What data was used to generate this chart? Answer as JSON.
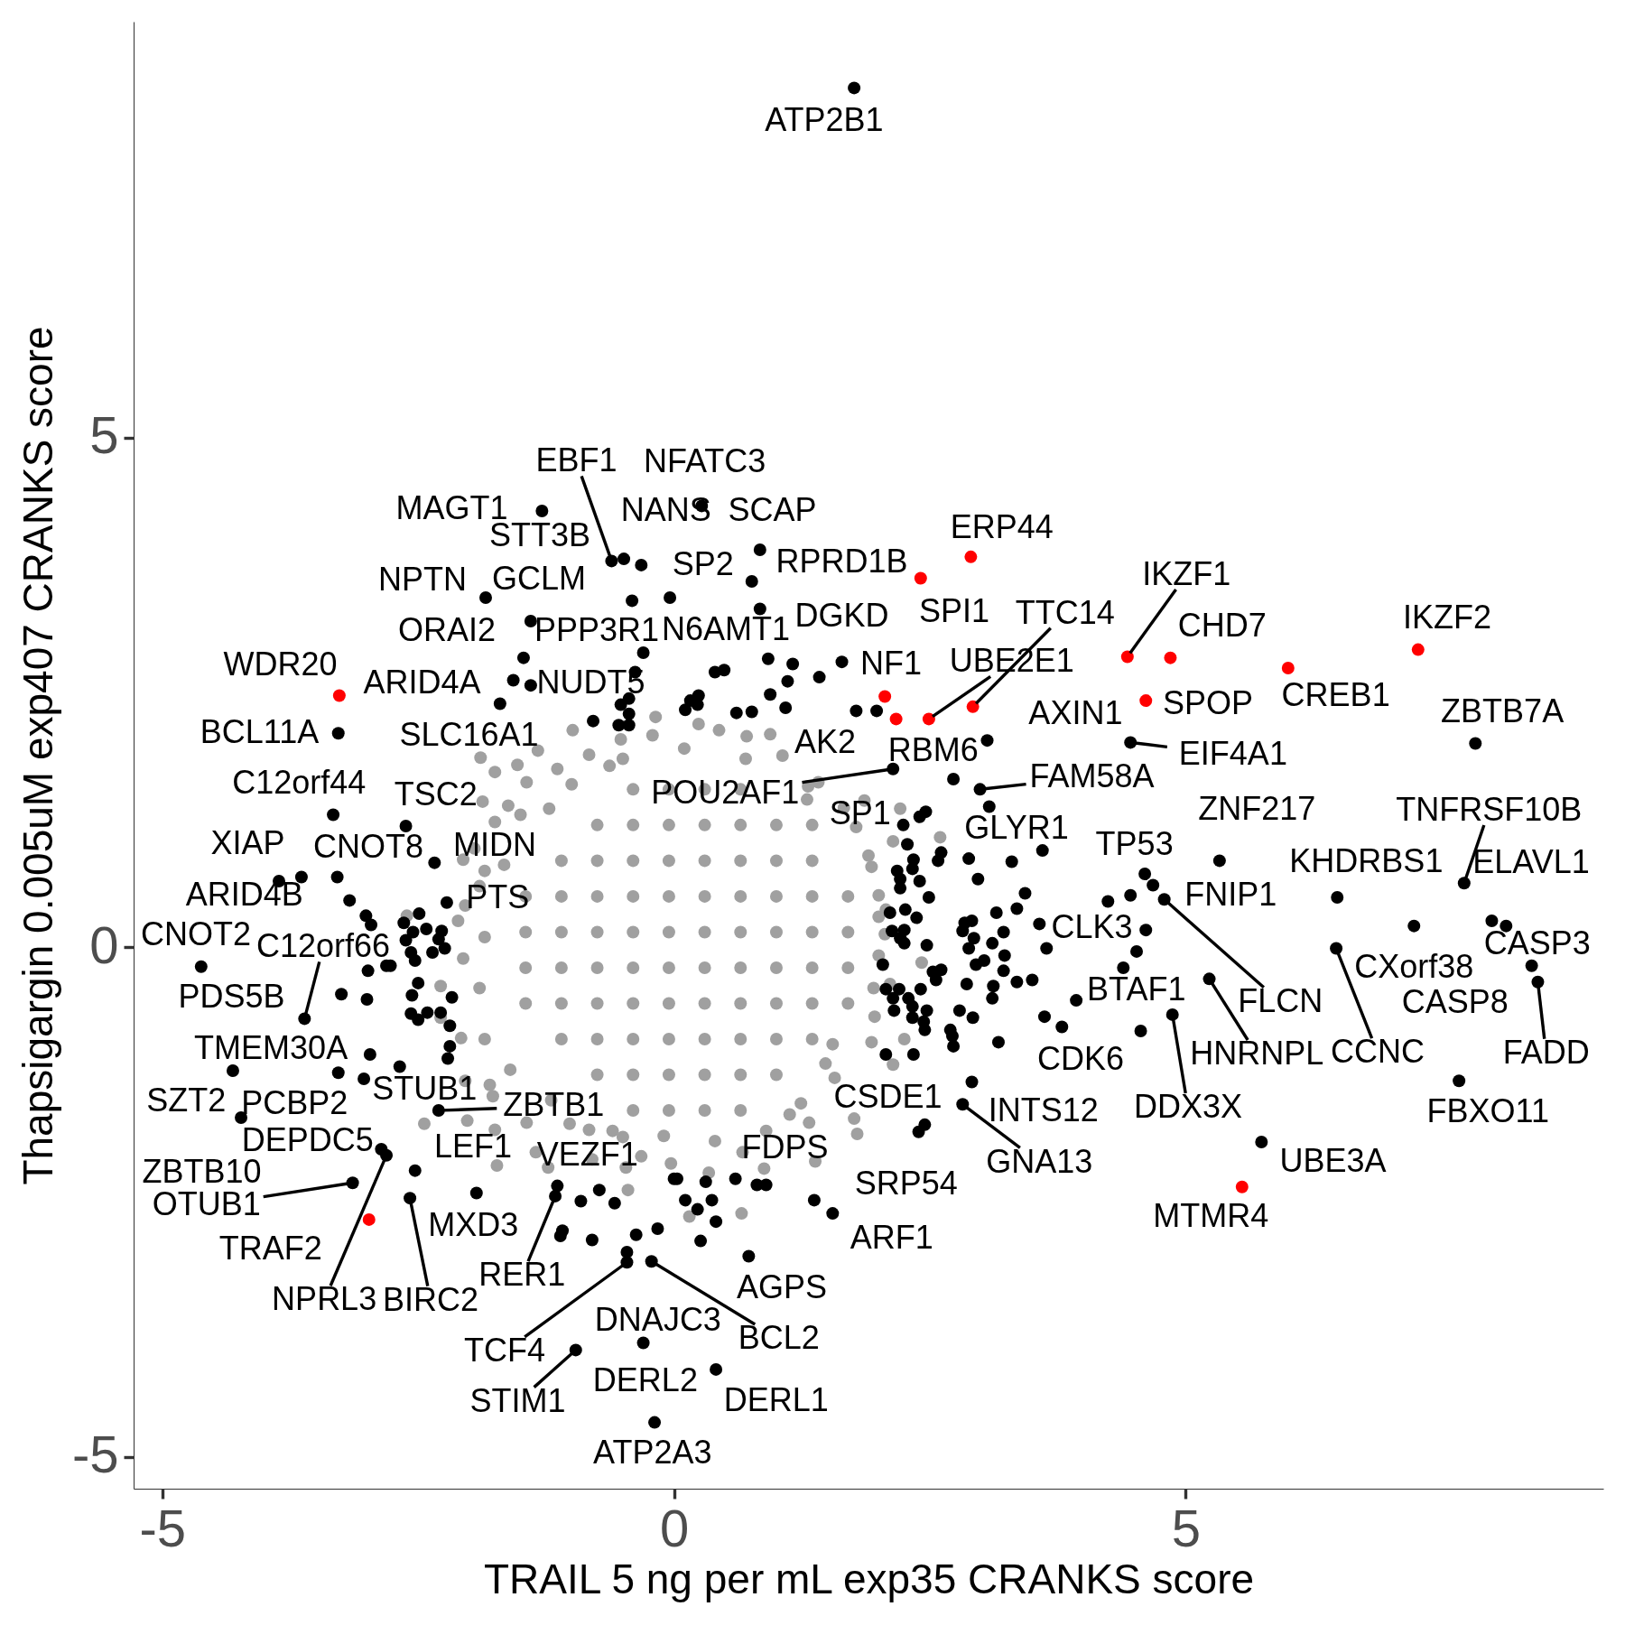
{
  "chart_data": {
    "type": "scatter",
    "xlabel": "TRAIL 5 ng per mL exp35 CRANKS score",
    "ylabel": "Thapsigargin 0.005uM exp407 CRANKS score",
    "xlim": [
      -5.28,
      9.08
    ],
    "ylim": [
      -5.31,
      9.08
    ],
    "xticks": [
      -5,
      0,
      5
    ],
    "yticks": [
      -5,
      0,
      5
    ],
    "grid": false,
    "marker": "circle",
    "series": [
      {
        "color": "#a0a0a0",
        "x": [
          -0.18,
          -0.99,
          -1.33,
          -1.89,
          -1.75,
          -1.53,
          -1.14,
          -0.83,
          -0.63,
          -0.52,
          -0.21,
          0.24,
          -1.87,
          -1.62,
          -1.44,
          -1.22,
          -1.75,
          -1.95,
          -2.06,
          -1.66,
          -2.04,
          -2.11,
          -2.06,
          -2.28,
          -2.61,
          0.44,
          0.71,
          0.94,
          1.06,
          1.31,
          1.41,
          1.66,
          1.78,
          1.86,
          2.21,
          2.14,
          2.6,
          1.93,
          2.0,
          2.07,
          2.06,
          2.0,
          2.11,
          2.42,
          2.14,
          2.25,
          1.93,
          1.96,
          1.55,
          1.48,
          1.57,
          1.76,
          1.79,
          1.32,
          1.38,
          1.24,
          0.88,
          0.66,
          0.34,
          0.15,
          0.67,
          1.13,
          -2.44,
          -2.02,
          -1.75,
          -1.73,
          -1.44,
          -1.35,
          -1.23,
          -1.02,
          -0.83,
          -0.5,
          -0.47,
          -0.32,
          -0.03,
          -0.45,
          -0.8,
          -2.04,
          -2.08,
          -2.28,
          -1.77,
          -1.8,
          -1.9,
          -1.85,
          -1.9,
          -1.85,
          -1.6,
          -1.2,
          -0.6,
          -0.1,
          0.4,
          0.9,
          1.95,
          2.0,
          1.9,
          1.3,
          0.7,
          0.1,
          -0.5,
          -1.0,
          -1.5,
          -1.85,
          -1.45,
          -1.45,
          -1.45,
          -1.45,
          -1.1,
          -1.1,
          -1.1,
          -1.1,
          -1.1,
          -1.1,
          -0.75,
          -0.75,
          -0.75,
          -0.75,
          -0.75,
          -0.75,
          -0.75,
          -0.75,
          -0.4,
          -0.4,
          -0.4,
          -0.4,
          -0.4,
          -0.4,
          -0.4,
          -0.4,
          -0.4,
          -0.4,
          -0.05,
          -0.05,
          -0.05,
          -0.05,
          -0.05,
          -0.05,
          -0.05,
          -0.05,
          -0.05,
          -0.05,
          0.3,
          0.3,
          0.3,
          0.3,
          0.3,
          0.3,
          0.3,
          0.3,
          0.3,
          0.3,
          0.65,
          0.65,
          0.65,
          0.65,
          0.65,
          0.65,
          0.65,
          0.65,
          0.65,
          0.65,
          1.0,
          1.0,
          1.0,
          1.0,
          1.0,
          1.0,
          1.0,
          1.0,
          1.35,
          1.35,
          1.35,
          1.35,
          1.35,
          1.35,
          1.35,
          1.7,
          1.7,
          1.7,
          1.7
        ],
        "values": [
          2.26,
          2.13,
          1.93,
          1.86,
          1.72,
          1.79,
          1.75,
          1.89,
          1.78,
          2.04,
          2.08,
          2.19,
          1.43,
          1.39,
          1.62,
          1.36,
          1.23,
          0.97,
          0.86,
          0.81,
          0.41,
          0.26,
          -0.11,
          -0.38,
          0.31,
          2.13,
          2.07,
          2.09,
          1.88,
          1.58,
          1.62,
          1.37,
          1.18,
          1.44,
          1.36,
          1.04,
          1.08,
          0.79,
          0.51,
          0.37,
          0.13,
          -0.08,
          -0.36,
          -0.15,
          -1.15,
          -0.9,
          -0.93,
          -0.68,
          -0.95,
          -1.14,
          -1.28,
          -1.68,
          -1.83,
          -1.72,
          -2.1,
          -1.53,
          -2.17,
          -2.61,
          -2.21,
          -2.64,
          -2.01,
          -1.64,
          -1.73,
          -1.7,
          -1.79,
          -2.14,
          -1.72,
          -2.01,
          -2.16,
          -1.73,
          -1.79,
          -1.86,
          -2.16,
          -2.05,
          -2.12,
          -2.38,
          -2.08,
          -1.31,
          -0.89,
          -0.69,
          -1.46,
          -1.35,
          0.6,
          0.1,
          -0.4,
          -0.9,
          -1.2,
          -1.5,
          -1.8,
          -1.85,
          -1.9,
          -1.8,
          -0.4,
          0.3,
          0.9,
          1.45,
          1.85,
          1.95,
          1.85,
          1.6,
          1.3,
          0.75,
          -0.55,
          -0.2,
          0.15,
          0.5,
          -0.9,
          -0.55,
          -0.2,
          0.15,
          0.5,
          0.85,
          -1.25,
          -0.9,
          -0.55,
          -0.2,
          0.15,
          0.5,
          0.85,
          1.2,
          -1.6,
          -1.25,
          -0.9,
          -0.55,
          -0.2,
          0.15,
          0.5,
          0.85,
          1.2,
          1.55,
          -1.6,
          -1.25,
          -0.9,
          -0.55,
          -0.2,
          0.15,
          0.5,
          0.85,
          1.2,
          1.55,
          -1.6,
          -1.25,
          -0.9,
          -0.55,
          -0.2,
          0.15,
          0.5,
          0.85,
          1.2,
          1.55,
          -1.6,
          -1.25,
          -0.9,
          -0.55,
          -0.2,
          0.15,
          0.5,
          0.85,
          1.2,
          1.55,
          -1.25,
          -0.9,
          -0.55,
          -0.2,
          0.15,
          0.5,
          0.85,
          1.2,
          -0.9,
          -0.55,
          -0.2,
          0.15,
          0.5,
          0.85,
          1.2,
          -0.55,
          -0.2,
          0.15,
          0.5
        ]
      },
      {
        "color": "#000000",
        "x": [
          1.76,
          -0.61,
          0.27,
          -1.29,
          -0.49,
          -0.32,
          0.84,
          0.76,
          -1.84,
          -1.4,
          -0.41,
          -0.04,
          1.64,
          -1.47,
          -1.57,
          -1.4,
          -1.7,
          -3.28,
          -3.33,
          -2.62,
          -3.86,
          -3.29,
          -2.34,
          -3.64,
          -2.22,
          -4.62,
          -3.61,
          -3.25,
          -3.28,
          -4.31,
          -3.03,
          -4.23,
          -2.68,
          -2.3,
          -2.86,
          -2.81,
          -3.14,
          -2.58,
          -2.53,
          -1.93,
          -1.14,
          -1.16,
          -0.46,
          -0.46,
          -0.22,
          -0.96,
          -0.3,
          -0.19,
          0.41,
          0.73,
          0.81,
          1.55,
          2.39,
          2.07,
          2.91,
          2.82,
          3.79,
          3.93,
          4.87,
          4.56,
          5.23,
          4.61,
          4.79,
          4.6,
          5.33,
          6.48,
          7.72,
          7.99,
          7.23,
          6.47,
          8.13,
          8.38,
          8.44,
          7.67,
          5.74,
          7.83,
          4.46,
          2.99,
          3.06,
          2.73,
          2.14,
          1.78,
          3.6,
          -0.38,
          -0.44,
          -0.52,
          -0.44,
          -0.54,
          -0.44,
          -0.79,
          0.4,
          0.49,
          0.11,
          0.16,
          0.24,
          0.23,
          -0.3,
          0.84,
          0.92,
          1.16,
          1.11,
          1.42,
          0.94,
          1.09,
          0.61,
          0.76,
          1.98,
          3.08,
          2.4,
          2.46,
          2.24,
          2.28,
          2.34,
          2.33,
          2.4,
          2.18,
          2.21,
          2.21,
          2.49,
          2.61,
          2.58,
          2.88,
          2.97,
          3.3,
          3.43,
          3.35,
          3.15,
          3.57,
          3.64,
          3.22,
          3.11,
          3.23,
          2.84,
          2.91,
          2.82,
          2.93,
          2.88,
          2.95,
          3.03,
          3.22,
          3.35,
          3.5,
          2.86,
          3.12,
          2.11,
          2.26,
          2.37,
          2.13,
          2.25,
          2.21,
          2.25,
          2.47,
          2.04,
          2.53,
          2.61,
          2.56,
          4.24,
          4.46,
          4.68,
          4.52,
          4.39,
          2.07,
          2.2,
          2.14,
          2.29,
          2.41,
          3.11,
          2.15,
          2.33,
          2.47,
          2.33,
          2.44,
          2.45,
          2.79,
          2.92,
          2.7,
          2.72,
          2.73,
          3.17,
          2.34,
          2.45,
          3.62,
          0.6,
          0.9,
          1.37,
          0.26,
          0.41,
          0.23,
          0.37,
          0.31,
          0.11,
          0.0,
          0.03,
          -0.91,
          -0.73,
          -0.58,
          -0.8,
          -1.09,
          -1.11,
          -0.37,
          -0.16,
          -3.17,
          -3.01,
          -2.96,
          -2.49,
          -2.64,
          -2.55,
          -2.42,
          -2.27,
          -2.62,
          -2.3,
          -2.24,
          -2.57,
          -2.53,
          -2.36,
          -2.99,
          -2.81,
          -2.77,
          -2.5,
          -3.0,
          -2.56,
          -2.17,
          -2.57,
          -2.5,
          -2.41,
          -2.28,
          -2.19,
          -2.19,
          -2.21,
          -2.97
        ],
        "values": [
          8.43,
          3.79,
          4.33,
          4.28,
          3.81,
          3.75,
          3.9,
          3.59,
          3.43,
          3.2,
          3.4,
          3.43,
          2.8,
          2.84,
          2.62,
          2.57,
          2.39,
          2.1,
          1.3,
          1.19,
          0.65,
          0.69,
          0.83,
          0.69,
          0.44,
          -0.19,
          -0.7,
          -0.46,
          -1.23,
          -1.21,
          -1.29,
          -1.67,
          -1.17,
          -1.6,
          -1.98,
          -2.04,
          -2.31,
          -2.46,
          -2.19,
          -2.41,
          -2.34,
          -2.44,
          -3.09,
          -2.99,
          -3.08,
          -3.95,
          -3.88,
          -4.66,
          -4.14,
          -3.03,
          -2.33,
          -2.61,
          -1.81,
          -1.05,
          -1.32,
          -1.54,
          -0.78,
          -0.52,
          -0.66,
          -0.82,
          -0.31,
          0.17,
          0.47,
          0.72,
          0.85,
          0.49,
          0.63,
          0.26,
          0.21,
          -0.01,
          0.21,
          -0.18,
          -0.34,
          -1.31,
          -1.91,
          2.0,
          2.01,
          1.55,
          2.03,
          1.65,
          1.75,
          2.32,
          0.95,
          2.7,
          2.44,
          2.38,
          2.29,
          2.18,
          2.18,
          2.22,
          2.7,
          2.72,
          2.33,
          2.42,
          2.47,
          2.38,
          2.89,
          3.32,
          2.83,
          2.78,
          2.61,
          2.65,
          2.48,
          2.35,
          2.3,
          2.31,
          2.32,
          1.38,
          1.28,
          1.33,
          1.2,
          1.01,
          0.86,
          0.77,
          0.65,
          0.75,
          0.67,
          0.58,
          0.49,
          0.93,
          0.85,
          0.87,
          0.67,
          0.84,
          0.53,
          0.38,
          0.34,
          0.23,
          -0.01,
          0.15,
          0.04,
          -0.08,
          0.24,
          0.26,
          0.16,
          0.09,
          -0.01,
          -0.17,
          -0.13,
          -0.23,
          -0.34,
          -0.32,
          -0.36,
          -0.38,
          0.34,
          0.37,
          0.29,
          0.16,
          0.17,
          0.09,
          0.04,
          0.02,
          -0.17,
          -0.24,
          -0.22,
          -0.32,
          0.45,
          0.51,
          0.61,
          -0.04,
          -0.2,
          -0.41,
          -0.41,
          -0.5,
          -0.5,
          -0.41,
          -0.5,
          -0.62,
          -0.58,
          -0.62,
          -0.69,
          -0.73,
          -0.81,
          -0.62,
          -0.69,
          -0.81,
          -0.87,
          -0.97,
          -0.93,
          -1.05,
          -1.74,
          -0.68,
          -2.27,
          -2.33,
          -2.48,
          -2.88,
          -2.69,
          -2.57,
          -2.48,
          -2.3,
          -2.48,
          -2.27,
          -2.27,
          -2.49,
          -2.38,
          -2.51,
          -2.87,
          -2.78,
          -2.83,
          -2.82,
          -2.76,
          0.46,
          0.31,
          0.22,
          0.33,
          0.24,
          0.15,
          0.18,
          0.16,
          0.07,
          0.08,
          -0.01,
          -0.05,
          -0.13,
          -0.05,
          -0.23,
          -0.18,
          -0.18,
          -0.35,
          -0.51,
          -0.47,
          -0.49,
          -0.65,
          -0.71,
          -0.64,
          -0.64,
          -0.77,
          -0.97,
          -1.09,
          -1.05
        ]
      },
      {
        "color": "#ff0000",
        "x": [
          -3.27,
          2.41,
          2.9,
          2.17,
          2.06,
          2.49,
          2.92,
          4.43,
          4.85,
          4.61,
          6.0,
          7.27,
          -2.98,
          5.55
        ],
        "values": [
          2.47,
          3.62,
          3.83,
          2.24,
          2.46,
          2.24,
          2.36,
          2.85,
          2.84,
          2.42,
          2.74,
          2.92,
          -2.67,
          -2.35
        ]
      }
    ],
    "annotations": [
      {
        "text": "ATP2B1",
        "x": 1.76,
        "y": 8.43
      },
      {
        "text": "EBF1",
        "x": -0.61,
        "y": 3.79
      },
      {
        "text": "NFATC3",
        "x": 0.27,
        "y": 4.33
      },
      {
        "text": "MAGT1",
        "x": -1.29,
        "y": 4.28
      },
      {
        "text": "STT3B",
        "x": -0.49,
        "y": 3.81
      },
      {
        "text": "NANS",
        "x": -0.32,
        "y": 3.75
      },
      {
        "text": "SCAP",
        "x": 0.84,
        "y": 3.9
      },
      {
        "text": "SP2",
        "x": 0.76,
        "y": 3.59
      },
      {
        "text": "RPRD1B",
        "x": 2.41,
        "y": 3.62
      },
      {
        "text": "ERP44",
        "x": 2.9,
        "y": 3.83
      },
      {
        "text": "NPTN",
        "x": -1.84,
        "y": 3.43
      },
      {
        "text": "GCLM",
        "x": -1.4,
        "y": 3.2
      },
      {
        "text": "PPP3R1",
        "x": -0.41,
        "y": 3.4
      },
      {
        "text": "N6AMT1",
        "x": -0.04,
        "y": 3.43
      },
      {
        "text": "DGKD",
        "x": 1.64,
        "y": 2.8
      },
      {
        "text": "SPI1",
        "x": 2.17,
        "y": 2.24
      },
      {
        "text": "ORAI2",
        "x": -1.47,
        "y": 2.84
      },
      {
        "text": "WDR20",
        "x": -3.27,
        "y": 2.47
      },
      {
        "text": "ARID4A",
        "x": -1.57,
        "y": 2.62
      },
      {
        "text": "NUDT5",
        "x": -1.4,
        "y": 2.57
      },
      {
        "text": "SLC16A1",
        "x": -1.7,
        "y": 2.39
      },
      {
        "text": "BCL11A",
        "x": -3.28,
        "y": 2.1
      },
      {
        "text": "C12orf44",
        "x": -3.33,
        "y": 1.3
      },
      {
        "text": "TSC2",
        "x": -2.62,
        "y": 1.19
      },
      {
        "text": "XIAP",
        "x": -3.86,
        "y": 0.65
      },
      {
        "text": "CNOT8",
        "x": -3.29,
        "y": 0.69
      },
      {
        "text": "MIDN",
        "x": -2.34,
        "y": 0.83
      },
      {
        "text": "ARID4B",
        "x": -3.64,
        "y": 0.69
      },
      {
        "text": "PTS",
        "x": -2.22,
        "y": 0.44
      },
      {
        "text": "CNOT2",
        "x": -4.62,
        "y": -0.19
      },
      {
        "text": "C12orf66",
        "x": -3.61,
        "y": -0.7
      },
      {
        "text": "PDS5B",
        "x": -3.25,
        "y": -0.46
      },
      {
        "text": "TMEM30A",
        "x": -3.28,
        "y": -1.23
      },
      {
        "text": "SZT2",
        "x": -4.31,
        "y": -1.21
      },
      {
        "text": "PCBP2",
        "x": -3.03,
        "y": -1.29
      },
      {
        "text": "ZBTB10",
        "x": -4.23,
        "y": -1.67
      },
      {
        "text": "STUB1",
        "x": -2.68,
        "y": -1.17
      },
      {
        "text": "ZBTB1",
        "x": -2.3,
        "y": -1.6
      },
      {
        "text": "DEPDC5",
        "x": -2.86,
        "y": -1.98
      },
      {
        "text": "NPRL3",
        "x": -2.81,
        "y": -2.04
      },
      {
        "text": "OTUB1",
        "x": -3.14,
        "y": -2.31
      },
      {
        "text": "TRAF2",
        "x": -2.98,
        "y": -2.67
      },
      {
        "text": "BIRC2",
        "x": -2.58,
        "y": -2.46
      },
      {
        "text": "LEF1",
        "x": -2.53,
        "y": -2.19
      },
      {
        "text": "MXD3",
        "x": -1.93,
        "y": -2.41
      },
      {
        "text": "VEZF1",
        "x": -1.14,
        "y": -2.34
      },
      {
        "text": "RER1",
        "x": -1.16,
        "y": -2.44
      },
      {
        "text": "TCF4",
        "x": -0.46,
        "y": -3.09
      },
      {
        "text": "DNAJC3",
        "x": -0.46,
        "y": -2.99
      },
      {
        "text": "BCL2",
        "x": -0.22,
        "y": -3.08
      },
      {
        "text": "STIM1",
        "x": -0.96,
        "y": -3.95
      },
      {
        "text": "DERL2",
        "x": -0.3,
        "y": -3.88
      },
      {
        "text": "ATP2A3",
        "x": -0.19,
        "y": -4.66
      },
      {
        "text": "DERL1",
        "x": 0.41,
        "y": -4.14
      },
      {
        "text": "AGPS",
        "x": 0.73,
        "y": -3.03
      },
      {
        "text": "FDPS",
        "x": 0.81,
        "y": -2.33
      },
      {
        "text": "ARF1",
        "x": 1.55,
        "y": -2.61
      },
      {
        "text": "SRP54",
        "x": 2.39,
        "y": -1.81
      },
      {
        "text": "CSDE1",
        "x": 2.07,
        "y": -1.05
      },
      {
        "text": "INTS12",
        "x": 2.91,
        "y": -1.32
      },
      {
        "text": "GNA13",
        "x": 2.82,
        "y": -1.54
      },
      {
        "text": "CDK6",
        "x": 3.79,
        "y": -0.78
      },
      {
        "text": "BTAF1",
        "x": 3.93,
        "y": -0.52
      },
      {
        "text": "DDX3X",
        "x": 4.87,
        "y": -0.66
      },
      {
        "text": "HNRNPL",
        "x": 5.23,
        "y": -0.31
      },
      {
        "text": "FLCN",
        "x": 4.79,
        "y": 0.47
      },
      {
        "text": "CLK3",
        "x": 4.61,
        "y": 0.17
      },
      {
        "text": "FNIP1",
        "x": 4.68,
        "y": 0.61
      },
      {
        "text": "TP53",
        "x": 4.6,
        "y": 0.72
      },
      {
        "text": "ZNF217",
        "x": 5.33,
        "y": 0.85
      },
      {
        "text": "KHDRBS1",
        "x": 6.48,
        "y": 0.49
      },
      {
        "text": "TNFRSF10B",
        "x": 7.72,
        "y": 0.63
      },
      {
        "text": "ELAVL1",
        "x": 7.99,
        "y": 0.26
      },
      {
        "text": "CXorf38",
        "x": 7.23,
        "y": 0.21
      },
      {
        "text": "CCNC",
        "x": 6.47,
        "y": -0.01
      },
      {
        "text": "CASP3",
        "x": 8.13,
        "y": 0.21
      },
      {
        "text": "CASP8",
        "x": 8.38,
        "y": -0.18
      },
      {
        "text": "FADD",
        "x": 8.44,
        "y": -0.34
      },
      {
        "text": "FBXO11",
        "x": 7.67,
        "y": -1.31
      },
      {
        "text": "UBE3A",
        "x": 5.74,
        "y": -1.91
      },
      {
        "text": "MTMR4",
        "x": 5.55,
        "y": -2.35
      },
      {
        "text": "IKZF1",
        "x": 4.43,
        "y": 2.85
      },
      {
        "text": "CHD7",
        "x": 4.85,
        "y": 2.84
      },
      {
        "text": "SPOP",
        "x": 4.61,
        "y": 2.42
      },
      {
        "text": "CREB1",
        "x": 6.0,
        "y": 2.74
      },
      {
        "text": "IKZF2",
        "x": 7.27,
        "y": 2.92
      },
      {
        "text": "ZBTB7A",
        "x": 7.83,
        "y": 2.0
      },
      {
        "text": "AXIN1",
        "x": 4.46,
        "y": 2.01
      },
      {
        "text": "EIF4A1",
        "x": 4.46,
        "y": 2.01
      },
      {
        "text": "FAM58A",
        "x": 2.99,
        "y": 1.55
      },
      {
        "text": "RBM6",
        "x": 3.06,
        "y": 2.03
      },
      {
        "text": "SP1",
        "x": 2.73,
        "y": 1.65
      },
      {
        "text": "POU2AF1",
        "x": 2.14,
        "y": 1.75
      },
      {
        "text": "AK2",
        "x": 1.78,
        "y": 2.32
      },
      {
        "text": "NF1",
        "x": 2.06,
        "y": 2.46
      },
      {
        "text": "UBE2E1",
        "x": 2.49,
        "y": 2.24
      },
      {
        "text": "TTC14",
        "x": 2.92,
        "y": 2.36
      },
      {
        "text": "GLYR1",
        "x": 3.6,
        "y": 0.95
      }
    ]
  }
}
